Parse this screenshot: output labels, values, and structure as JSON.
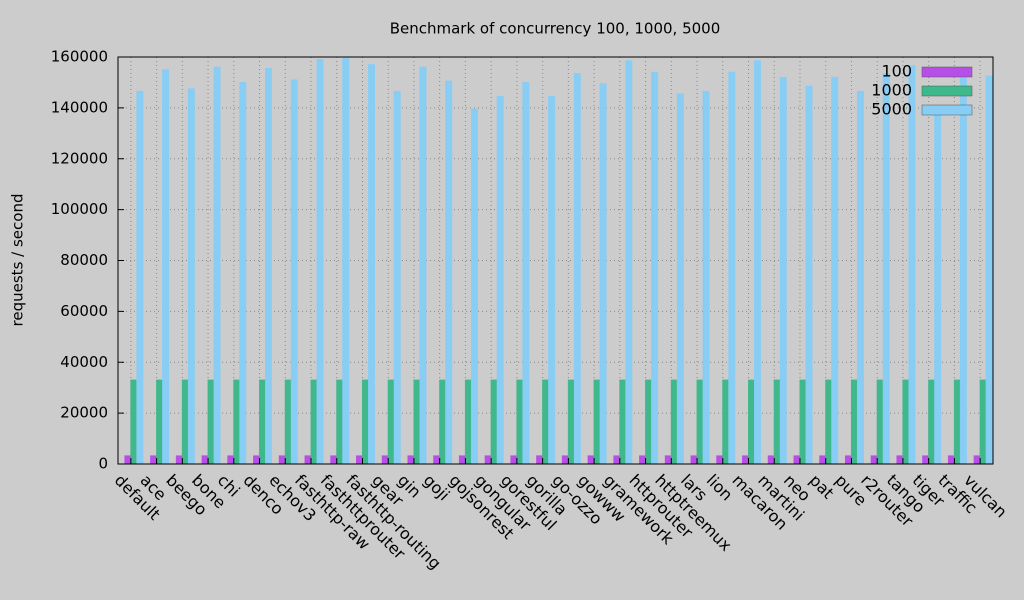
{
  "chart_data": {
    "type": "bar",
    "title": "Benchmark of concurrency 100, 1000, 5000",
    "y_label": "requests / second",
    "categories": [
      "default",
      "ace",
      "beego",
      "bone",
      "chi",
      "denco",
      "echov3",
      "fasthttp-raw",
      "fasthttprouter",
      "fasthttp-routing",
      "gear",
      "gin",
      "goji",
      "gojsonrest",
      "gongular",
      "gorestful",
      "gorilla",
      "go-ozzo",
      "gowww",
      "gramework",
      "httprouter",
      "httptreemux",
      "lars",
      "lion",
      "macaron",
      "martini",
      "neo",
      "pat",
      "pure",
      "r2router",
      "tango",
      "tiger",
      "traffic",
      "vulcan"
    ],
    "series": [
      {
        "name": "100",
        "color": "#b84ee8",
        "values": [
          3200,
          3200,
          3200,
          3200,
          3200,
          3200,
          3200,
          3200,
          3200,
          3200,
          3200,
          3200,
          3200,
          3200,
          3200,
          3200,
          3200,
          3200,
          3200,
          3200,
          3200,
          3200,
          3200,
          3200,
          3200,
          3200,
          3200,
          3200,
          3200,
          3200,
          3200,
          3200,
          3200,
          3200
        ]
      },
      {
        "name": "1000",
        "color": "#3fb88c",
        "values": [
          33000,
          33000,
          33000,
          33000,
          33000,
          33000,
          33000,
          33000,
          33000,
          33000,
          33000,
          33000,
          33000,
          33000,
          33000,
          33000,
          33000,
          33000,
          33000,
          33000,
          33000,
          33000,
          33000,
          33000,
          33000,
          33000,
          33000,
          33000,
          33000,
          33000,
          33000,
          33000,
          33000,
          33000
        ]
      },
      {
        "name": "5000",
        "color": "#88cdf4",
        "values": [
          146500,
          155000,
          147500,
          156000,
          150000,
          155500,
          151000,
          159000,
          159500,
          157000,
          146500,
          156000,
          150500,
          139500,
          144500,
          150000,
          144500,
          153500,
          149500,
          158500,
          154000,
          145500,
          146500,
          154000,
          158500,
          152000,
          148500,
          152000,
          146500,
          153500,
          156500,
          138000,
          152000,
          152500
        ]
      }
    ],
    "ylim": [
      0,
      160000
    ],
    "yticks": [
      0,
      20000,
      40000,
      60000,
      80000,
      100000,
      120000,
      140000,
      160000
    ],
    "grid": true,
    "legend": "top-right"
  }
}
